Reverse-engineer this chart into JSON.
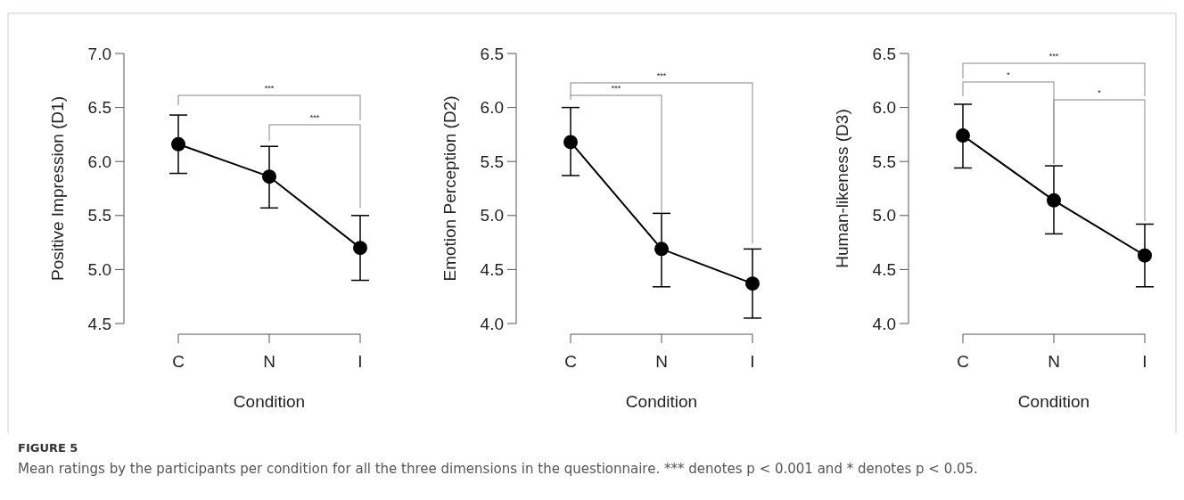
{
  "chart_data": [
    {
      "type": "line",
      "xlabel": "Condition",
      "ylabel": "Positive Impression (D1)",
      "categories": [
        "C",
        "N",
        "I"
      ],
      "color": "#000000",
      "marker": "circle",
      "line_style": "solid",
      "grid": false,
      "values": [
        6.16,
        5.86,
        5.2
      ],
      "errors": [
        [
          5.89,
          6.43
        ],
        [
          5.57,
          6.14
        ],
        [
          4.9,
          5.5
        ]
      ],
      "ylim": [
        4.5,
        7.0
      ],
      "yticks": [
        {
          "value": 4.5,
          "label": "4.5"
        },
        {
          "value": 5,
          "label": "5.0"
        },
        {
          "value": 5.5,
          "label": "5.5"
        },
        {
          "value": 6,
          "label": "6.0"
        },
        {
          "value": 6.5,
          "label": "6.5"
        },
        {
          "value": 7,
          "label": "7.0"
        }
      ],
      "annotations": [
        "***",
        "***",
        "FIGURE 5",
        "Mean ratings by the participants per condition for all the three dimensions in the questionnaire. *** denotes p < 0.001 and * denotes p < 0.05."
      ]
    },
    {
      "type": "line",
      "xlabel": "Condition",
      "ylabel": "Emotion Perception (D2)",
      "categories": [
        "C",
        "N",
        "I"
      ],
      "color": "#000000",
      "marker": "circle",
      "line_style": "solid",
      "grid": false,
      "values": [
        5.68,
        4.69,
        4.37
      ],
      "errors": [
        [
          5.37,
          6.0
        ],
        [
          4.34,
          5.02
        ],
        [
          4.05,
          4.69
        ]
      ],
      "ylim": [
        4.0,
        6.5
      ],
      "yticks": [
        {
          "value": 4,
          "label": "4.0"
        },
        {
          "value": 4.5,
          "label": "4.5"
        },
        {
          "value": 5,
          "label": "5.0"
        },
        {
          "value": 5.5,
          "label": "5.5"
        },
        {
          "value": 6,
          "label": "6.0"
        },
        {
          "value": 6.5,
          "label": "6.5"
        }
      ],
      "annotations": [
        "***",
        "***"
      ]
    },
    {
      "type": "line",
      "xlabel": "Condition",
      "ylabel": "Human-likeness (D3)",
      "categories": [
        "C",
        "N",
        "I"
      ],
      "color": "#000000",
      "marker": "circle",
      "line_style": "solid",
      "grid": false,
      "values": [
        5.74,
        5.14,
        4.63
      ],
      "errors": [
        [
          5.44,
          6.03
        ],
        [
          4.83,
          5.46
        ],
        [
          4.34,
          4.92
        ]
      ],
      "ylim": [
        4.0,
        6.5
      ],
      "yticks": [
        {
          "value": 4,
          "label": "4.0"
        },
        {
          "value": 4.5,
          "label": "4.5"
        },
        {
          "value": 5,
          "label": "5.0"
        },
        {
          "value": 5.5,
          "label": "5.5"
        },
        {
          "value": 6,
          "label": "6.0"
        },
        {
          "value": 6.5,
          "label": "6.5"
        }
      ],
      "annotations": [
        "***",
        "*",
        "*"
      ]
    }
  ]
}
